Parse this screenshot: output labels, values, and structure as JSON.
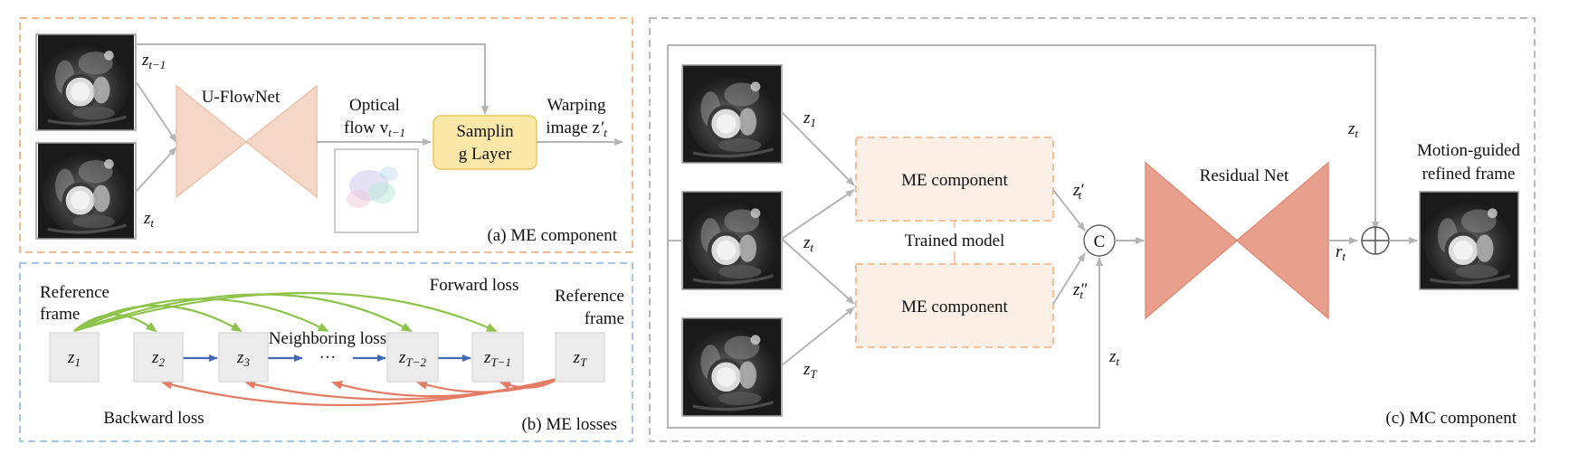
{
  "colors": {
    "me_border": "#f2b98f",
    "loss_border": "#a7c4e8",
    "mc_border": "#b9b9b9",
    "unet_fill": "#f5d7c7",
    "unet_stroke": "#ecc3ac",
    "resnet_fill": "#e8a08c",
    "resnet_stroke": "#df8d79",
    "sampling_fill": "#fbe7a8",
    "sampling_stroke": "#eac55a",
    "me_box_fill": "#fcefe6",
    "me_box_stroke": "#f2b98f",
    "arrow_gray": "#b5b5b5",
    "arrow_blue": "#4169b5",
    "arrow_green": "#8dc34a",
    "arrow_red": "#e47b63",
    "node_fill": "#ececec"
  },
  "me_panel": {
    "caption": "(a) ME component",
    "unet_label": "U-FlowNet",
    "optical_flow_line1": "Optical",
    "optical_flow_line2": "flow v",
    "optical_flow_sub": "t−1",
    "sampling_line1": "Samplin",
    "sampling_line2": "g Layer",
    "warping_line1": "Warping",
    "warping_line2": "image z",
    "warping_prime": "′",
    "warping_sub": "t",
    "input_prev": "z",
    "input_prev_sub": "t−1",
    "input_cur": "z",
    "input_cur_sub": "t"
  },
  "loss_panel": {
    "caption": "(b) ME losses",
    "forward_loss": "Forward loss",
    "backward_loss": "Backward loss",
    "neighboring_loss": "Neighboring loss",
    "ref_left_line1": "Reference",
    "ref_left_line2": "frame",
    "ref_right_line1": "Reference",
    "ref_right_line2": "frame",
    "ellipsis": "···",
    "nodes": [
      {
        "base": "z",
        "sub": "1"
      },
      {
        "base": "z",
        "sub": "2"
      },
      {
        "base": "z",
        "sub": "3"
      },
      {
        "base": "z",
        "sub": "T−2"
      },
      {
        "base": "z",
        "sub": "T−1"
      },
      {
        "base": "z",
        "sub": "T"
      }
    ]
  },
  "mc_panel": {
    "caption": "(c) MC component",
    "me_component_top": "ME component",
    "me_component_bottom": "ME component",
    "trained_model": "Trained model",
    "residual_net": "Residual Net",
    "concat_symbol": "C",
    "output_line1": "Motion-guided",
    "output_line2": "refined frame",
    "z1": {
      "base": "z",
      "sub": "1"
    },
    "zt_mid": {
      "base": "z",
      "sub": "t"
    },
    "zT": {
      "base": "z",
      "sub": "T"
    },
    "zt_top": {
      "base": "z",
      "sub": "t"
    },
    "zt_bottom": {
      "base": "z",
      "sub": "t"
    },
    "zt_prime": {
      "base": "z",
      "prime": "′",
      "sub": "t"
    },
    "zt_dprime": {
      "base": "z",
      "prime": "″",
      "sub": "t"
    },
    "rt": {
      "base": "r",
      "sub": "t"
    }
  }
}
